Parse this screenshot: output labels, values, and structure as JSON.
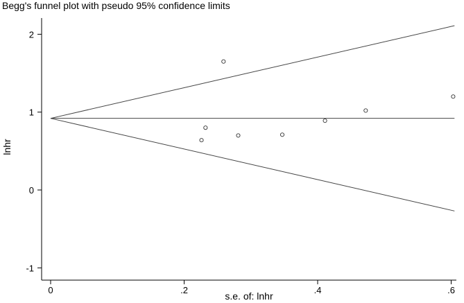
{
  "chart_data": {
    "type": "scatter",
    "title": "Begg's funnel plot with pseudo 95% confidence limits",
    "xlabel": "s.e. of: lnhr",
    "ylabel": "lnhr",
    "xlim": [
      0,
      0.62
    ],
    "ylim": [
      -1.15,
      2.3
    ],
    "x_ticks": [
      0,
      0.2,
      0.4,
      0.6
    ],
    "x_tick_labels": [
      "0",
      ".2",
      ".4",
      ".6"
    ],
    "y_ticks": [
      -1,
      0,
      1,
      2
    ],
    "y_tick_labels": [
      "-1",
      "0",
      "1",
      "2"
    ],
    "grid": false,
    "pooled_estimate": 0.92,
    "funnel_limits": {
      "center_line": {
        "x": [
          0,
          0.605
        ],
        "y": [
          0.92,
          0.92
        ]
      },
      "upper_limit": {
        "x": [
          0,
          0.605
        ],
        "y": [
          0.92,
          2.11
        ]
      },
      "lower_limit": {
        "x": [
          0,
          0.605
        ],
        "y": [
          0.92,
          -0.27
        ]
      }
    },
    "points": [
      {
        "x": 0.226,
        "y": 0.64
      },
      {
        "x": 0.232,
        "y": 0.8
      },
      {
        "x": 0.259,
        "y": 1.65
      },
      {
        "x": 0.281,
        "y": 0.7
      },
      {
        "x": 0.347,
        "y": 0.71
      },
      {
        "x": 0.411,
        "y": 0.89
      },
      {
        "x": 0.472,
        "y": 1.02
      },
      {
        "x": 0.603,
        "y": 1.2
      }
    ],
    "colors": {
      "line": "#444444",
      "axis": "#000000",
      "marker": "#333333",
      "background": "#ffffff"
    }
  }
}
